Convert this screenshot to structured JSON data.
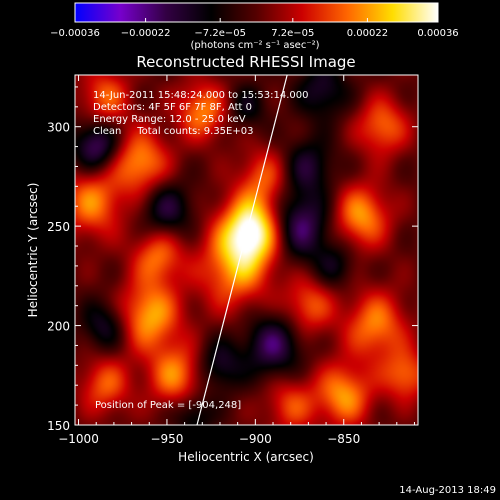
{
  "chart_data": {
    "type": "heatmap",
    "title": "Reconstructed RHESSI Image",
    "xlabel": "Heliocentric X (arcsec)",
    "ylabel": "Heliocentric Y (arcsec)",
    "xlim": [
      -1002,
      -808
    ],
    "ylim": [
      150,
      326
    ],
    "x_ticks": [
      -1000,
      -950,
      -900,
      -850
    ],
    "x_tick_labels": [
      "−1000",
      "−950",
      "−900",
      "−850"
    ],
    "y_ticks": [
      150,
      200,
      250,
      300
    ],
    "y_tick_labels": [
      "150",
      "200",
      "250",
      "300"
    ],
    "grid": false,
    "colorbar": {
      "range": [
        -0.00036,
        0.00036
      ],
      "ticks": [
        -0.00036,
        -0.00022,
        -7.2e-05,
        7.2e-05,
        0.00022,
        0.00036
      ],
      "tick_labels": [
        "−0.00036",
        "−0.00022",
        "−7.2e−05",
        "7.2e−05",
        "0.00022",
        "0.00036"
      ],
      "unit_label": "(photons cm⁻² s⁻¹ asec⁻²)",
      "colors": [
        "#0000ff",
        "#7700cc",
        "#330044",
        "#000000",
        "#550000",
        "#cc0000",
        "#ff6600",
        "#ffdd00",
        "#ffffff"
      ]
    },
    "annotations": [
      "14-Jun-2011 15:48:24.000 to 15:53:14.000",
      "Detectors: 4F 5F 6F 7F 8F, Att 0",
      "Energy Range: 12.0 - 25.0 keV",
      "Clean     Total counts: 9.35E+03"
    ],
    "peak_label": "Position of Peak = [-904,248]",
    "peak": [
      -904,
      248
    ],
    "limb_line": [
      [
        -933,
        150
      ],
      [
        -882,
        326
      ]
    ],
    "blobs": [
      {
        "x": -902,
        "y": 248,
        "v": 1.0,
        "s": 12
      },
      {
        "x": -912,
        "y": 228,
        "v": 0.55,
        "s": 14
      },
      {
        "x": -895,
        "y": 275,
        "v": 0.4,
        "s": 10
      },
      {
        "x": -992,
        "y": 262,
        "v": 0.55,
        "s": 12
      },
      {
        "x": -965,
        "y": 282,
        "v": 0.6,
        "s": 11
      },
      {
        "x": -955,
        "y": 235,
        "v": 0.5,
        "s": 10
      },
      {
        "x": -960,
        "y": 205,
        "v": 0.65,
        "s": 12
      },
      {
        "x": -945,
        "y": 175,
        "v": 0.55,
        "s": 11
      },
      {
        "x": -985,
        "y": 170,
        "v": 0.45,
        "s": 10
      },
      {
        "x": -930,
        "y": 308,
        "v": 0.55,
        "s": 10
      },
      {
        "x": -985,
        "y": 315,
        "v": 0.45,
        "s": 10
      },
      {
        "x": -870,
        "y": 210,
        "v": 0.45,
        "s": 10
      },
      {
        "x": -840,
        "y": 255,
        "v": 0.6,
        "s": 11
      },
      {
        "x": -828,
        "y": 300,
        "v": 0.5,
        "s": 10
      },
      {
        "x": -832,
        "y": 200,
        "v": 0.55,
        "s": 12
      },
      {
        "x": -850,
        "y": 165,
        "v": 0.6,
        "s": 11
      },
      {
        "x": -880,
        "y": 160,
        "v": 0.4,
        "s": 10
      },
      {
        "x": -815,
        "y": 175,
        "v": 0.5,
        "s": 9
      },
      {
        "x": -990,
        "y": 290,
        "v": -0.6,
        "s": 9
      },
      {
        "x": -950,
        "y": 258,
        "v": -0.45,
        "s": 10
      },
      {
        "x": -875,
        "y": 250,
        "v": -0.6,
        "s": 12
      },
      {
        "x": -870,
        "y": 280,
        "v": -0.4,
        "s": 10
      },
      {
        "x": -862,
        "y": 318,
        "v": -0.4,
        "s": 10
      },
      {
        "x": -890,
        "y": 190,
        "v": -0.55,
        "s": 11
      },
      {
        "x": -920,
        "y": 180,
        "v": -0.4,
        "s": 9
      },
      {
        "x": -985,
        "y": 200,
        "v": -0.4,
        "s": 9
      },
      {
        "x": -935,
        "y": 155,
        "v": -0.35,
        "s": 8
      },
      {
        "x": -855,
        "y": 230,
        "v": -0.3,
        "s": 8
      },
      {
        "x": -905,
        "y": 310,
        "v": -0.3,
        "s": 8
      }
    ]
  },
  "footer": {
    "timestamp": "14-Aug-2013 18:49"
  }
}
